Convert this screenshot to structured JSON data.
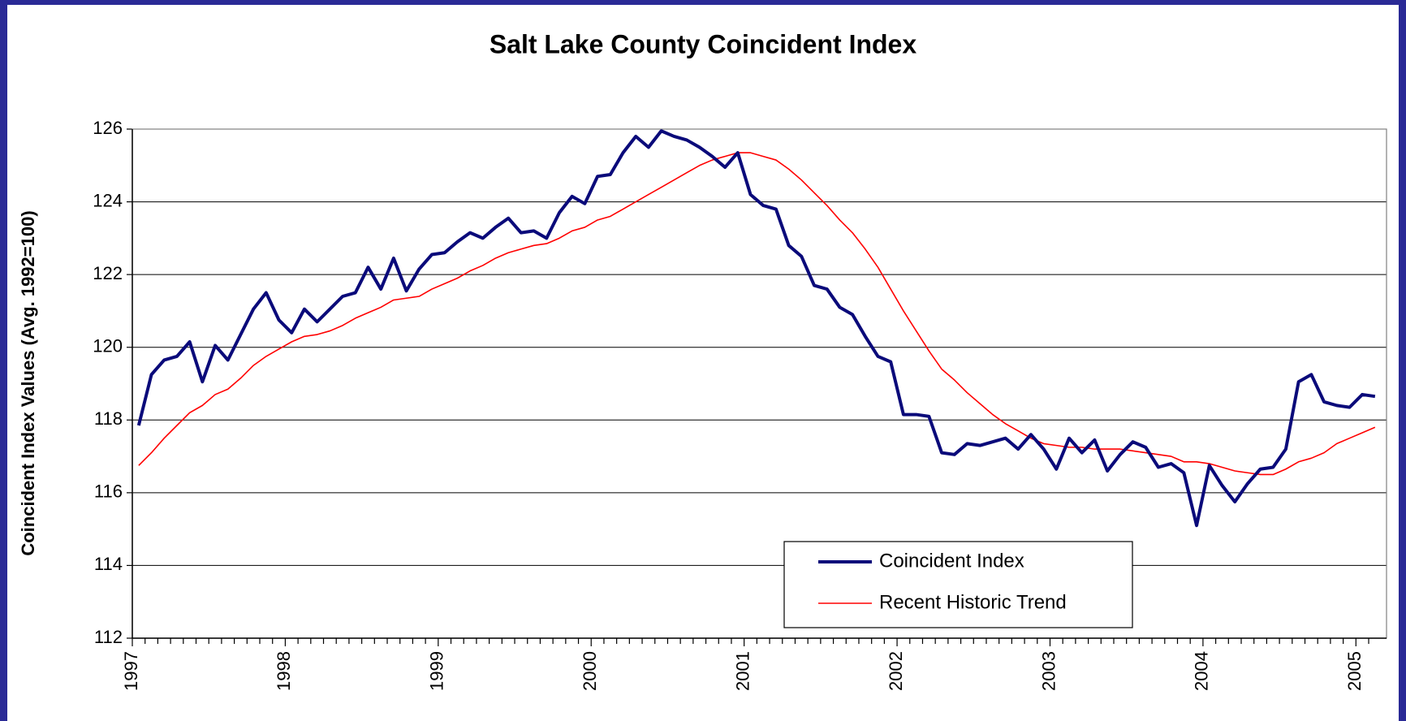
{
  "chart_data": {
    "type": "line",
    "title": "Salt Lake County Coincident Index",
    "y_label": "Coincident Index Values (Avg. 1992=100)",
    "categories": [
      "1997",
      null,
      null,
      null,
      null,
      null,
      null,
      null,
      null,
      null,
      null,
      null,
      "1998",
      null,
      null,
      null,
      null,
      null,
      null,
      null,
      null,
      null,
      null,
      null,
      "1999",
      null,
      null,
      null,
      null,
      null,
      null,
      null,
      null,
      null,
      null,
      null,
      "2000",
      null,
      null,
      null,
      null,
      null,
      null,
      null,
      null,
      null,
      null,
      null,
      "2001",
      null,
      null,
      null,
      null,
      null,
      null,
      null,
      null,
      null,
      null,
      null,
      "2002",
      null,
      null,
      null,
      null,
      null,
      null,
      null,
      null,
      null,
      null,
      null,
      "2003",
      null,
      null,
      null,
      null,
      null,
      null,
      null,
      null,
      null,
      null,
      null,
      "2004",
      null,
      null,
      null,
      null,
      null,
      null,
      null,
      null,
      null,
      null,
      null,
      "2005",
      null
    ],
    "series": [
      {
        "name": "Coincident Index",
        "color": "#0a0a7a",
        "width": 4,
        "values": [
          117.85,
          119.25,
          119.65,
          119.75,
          120.15,
          119.05,
          120.05,
          119.65,
          120.35,
          121.05,
          121.5,
          120.75,
          120.4,
          121.05,
          120.7,
          121.05,
          121.4,
          121.5,
          122.2,
          121.6,
          122.45,
          121.55,
          122.15,
          122.55,
          122.6,
          122.9,
          123.15,
          123.0,
          123.3,
          123.55,
          123.15,
          123.2,
          123.0,
          123.7,
          124.15,
          123.95,
          124.7,
          124.75,
          125.35,
          125.8,
          125.5,
          125.95,
          125.8,
          125.7,
          125.5,
          125.25,
          124.95,
          125.35,
          124.2,
          123.9,
          123.8,
          122.8,
          122.5,
          121.7,
          121.6,
          121.1,
          120.9,
          120.3,
          119.75,
          119.6,
          118.15,
          118.15,
          118.1,
          117.1,
          117.05,
          117.35,
          117.3,
          117.4,
          117.5,
          117.2,
          117.6,
          117.2,
          116.65,
          117.5,
          117.1,
          117.45,
          116.6,
          117.05,
          117.4,
          117.25,
          116.7,
          116.8,
          116.55,
          115.1,
          116.75,
          116.2,
          115.75,
          116.25,
          116.65,
          116.7,
          117.2,
          119.05,
          119.25,
          118.5,
          118.4,
          118.35,
          118.7,
          118.65
        ]
      },
      {
        "name": "Recent Historic Trend",
        "color": "#ff0000",
        "width": 1.6,
        "values": [
          116.75,
          117.1,
          117.5,
          117.85,
          118.2,
          118.4,
          118.7,
          118.85,
          119.15,
          119.5,
          119.75,
          119.95,
          120.15,
          120.3,
          120.35,
          120.45,
          120.6,
          120.8,
          120.95,
          121.1,
          121.3,
          121.35,
          121.4,
          121.6,
          121.75,
          121.9,
          122.1,
          122.25,
          122.45,
          122.6,
          122.7,
          122.8,
          122.85,
          123.0,
          123.2,
          123.3,
          123.5,
          123.6,
          123.8,
          124.0,
          124.2,
          124.4,
          124.6,
          124.8,
          125.0,
          125.15,
          125.25,
          125.35,
          125.35,
          125.25,
          125.15,
          124.9,
          124.6,
          124.25,
          123.9,
          123.5,
          123.15,
          122.7,
          122.2,
          121.6,
          121.0,
          120.45,
          119.9,
          119.4,
          119.1,
          118.75,
          118.45,
          118.15,
          117.9,
          117.7,
          117.5,
          117.35,
          117.3,
          117.25,
          117.25,
          117.2,
          117.2,
          117.2,
          117.15,
          117.1,
          117.05,
          117.0,
          116.85,
          116.85,
          116.8,
          116.7,
          116.6,
          116.55,
          116.5,
          116.5,
          116.65,
          116.85,
          116.95,
          117.1,
          117.35,
          117.5,
          117.65,
          117.8
        ]
      }
    ],
    "ylim": [
      112,
      126
    ],
    "yticks": [
      112,
      114,
      116,
      118,
      120,
      122,
      124,
      126
    ],
    "grid": true,
    "legend": "lower right"
  }
}
